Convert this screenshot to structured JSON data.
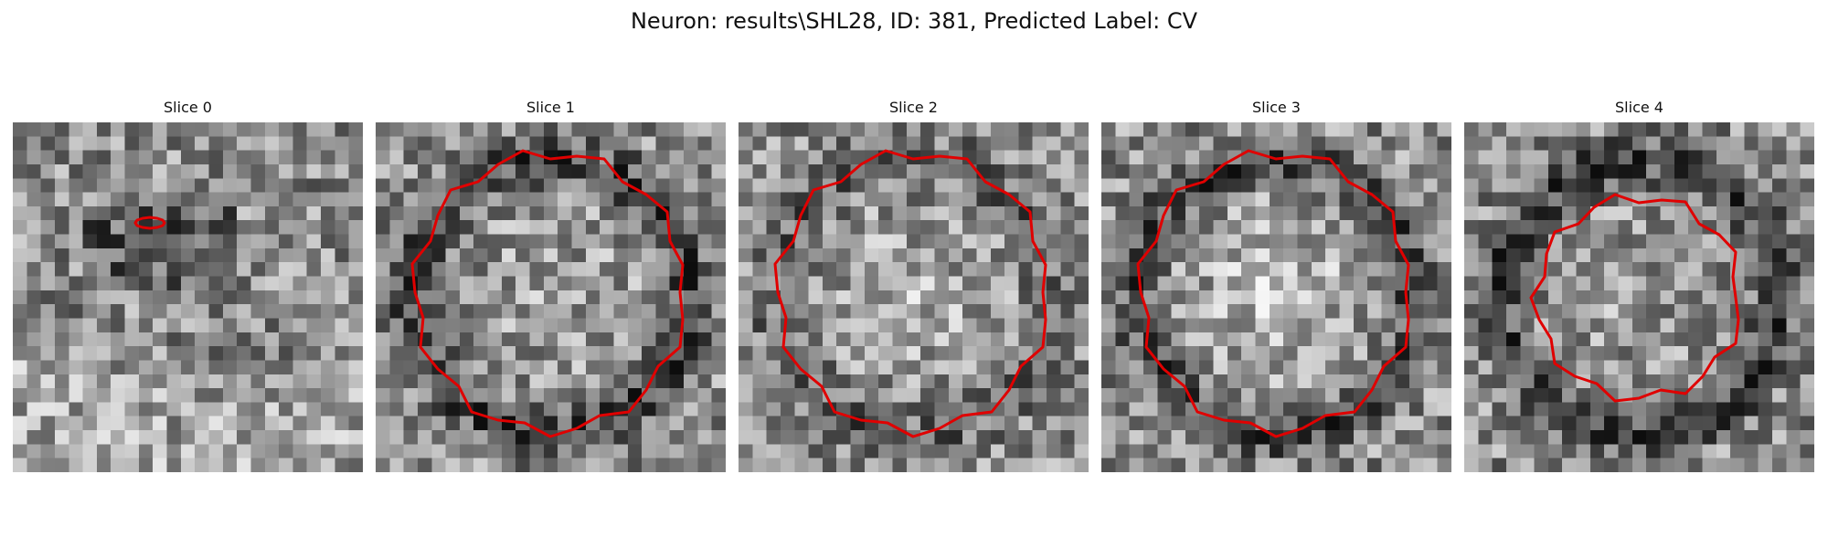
{
  "figure": {
    "title": "Neuron: results\\SHL28, ID: 381, Predicted Label: CV"
  },
  "slices": [
    {
      "label": "Slice 0",
      "seed": 11,
      "ring_strength": 0.0,
      "center_bright": 0.0,
      "contour_type": "small"
    },
    {
      "label": "Slice 1",
      "seed": 23,
      "ring_strength": 0.85,
      "center_bright": 0.25,
      "contour_type": "large"
    },
    {
      "label": "Slice 2",
      "seed": 37,
      "ring_strength": 0.45,
      "center_bright": 0.35,
      "contour_type": "large"
    },
    {
      "label": "Slice 3",
      "seed": 41,
      "ring_strength": 0.8,
      "center_bright": 0.55,
      "contour_type": "large"
    },
    {
      "label": "Slice 4",
      "seed": 59,
      "ring_strength": 0.9,
      "center_bright": 0.15,
      "contour_type": "medium"
    }
  ],
  "colors": {
    "contour": "#e00000",
    "background": "#ffffff"
  }
}
